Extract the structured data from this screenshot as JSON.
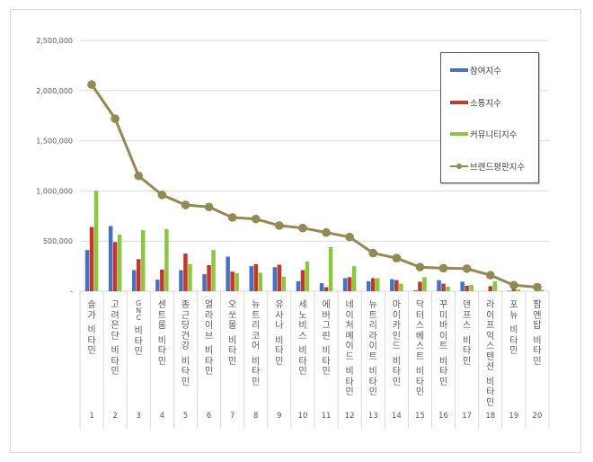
{
  "chart_data": {
    "type": "bar",
    "title": "",
    "xlabel": "",
    "ylabel": "",
    "ylim": [
      0,
      2500000
    ],
    "y_ticks": [
      "-",
      "500,000",
      "1,000,000",
      "1,500,000",
      "2,000,000",
      "2,500,000"
    ],
    "grid": true,
    "legend_position": "upper right (inside)",
    "categories": [
      "1",
      "2",
      "3",
      "4",
      "5",
      "6",
      "7",
      "8",
      "9",
      "10",
      "11",
      "12",
      "13",
      "14",
      "15",
      "16",
      "17",
      "18",
      "19",
      "20"
    ],
    "category_names": [
      "솔가 비타민",
      "고려은단 비타민",
      "GNC 비타민",
      "센트룸 비타민",
      "종근당건강 비타민",
      "얼라이브 비타민",
      "오쏘몰 비타민",
      "뉴트리코어 비타민",
      "유사나 비타민",
      "세노비스 비타민",
      "에버그린 비타민",
      "네이처메이드 비타민",
      "뉴트리라이트 비타민",
      "마이카인드 비타민",
      "닥터스베스트 비타민",
      "꾸미바이트 비타민",
      "덴프스 비타민",
      "라이프익스텐션 비타민",
      "포뉴 비타민",
      "팜엔탑 비타민"
    ],
    "series": [
      {
        "name": "참여지수",
        "type": "bar",
        "color": "#4472c4",
        "values": [
          410000,
          650000,
          210000,
          115000,
          210000,
          170000,
          345000,
          250000,
          240000,
          100000,
          80000,
          130000,
          100000,
          120000,
          10000,
          110000,
          95000,
          0,
          5000,
          0
        ]
      },
      {
        "name": "소통지수",
        "type": "bar",
        "color": "#c0392b",
        "values": [
          640000,
          490000,
          320000,
          215000,
          375000,
          260000,
          195000,
          270000,
          265000,
          210000,
          40000,
          140000,
          130000,
          110000,
          95000,
          75000,
          55000,
          50000,
          20000,
          0
        ]
      },
      {
        "name": "커뮤니티지수",
        "type": "bar",
        "color": "#8dc63f",
        "values": [
          1000000,
          565000,
          610000,
          620000,
          270000,
          410000,
          180000,
          185000,
          145000,
          295000,
          440000,
          250000,
          130000,
          75000,
          140000,
          45000,
          65000,
          100000,
          20000,
          15000
        ]
      },
      {
        "name": "브랜드평판지수",
        "type": "line",
        "color": "#938953",
        "values": [
          2060000,
          1720000,
          1150000,
          960000,
          860000,
          840000,
          735000,
          720000,
          655000,
          630000,
          585000,
          540000,
          380000,
          330000,
          240000,
          230000,
          225000,
          160000,
          60000,
          40000
        ]
      }
    ]
  },
  "legend": {
    "items": [
      "참여지수",
      "소통지수",
      "커뮤니티지수",
      "브랜드평판지수"
    ],
    "colors": [
      "#4472c4",
      "#c0392b",
      "#8dc63f",
      "#938953"
    ]
  },
  "x_axis": {
    "names": [
      "솔가 비타민",
      "고려은단 비타민",
      "GNC 비타민",
      "센트룸 비타민",
      "종근당건강 비타민",
      "얼라이브 비타민",
      "오쏘몰 비타민",
      "뉴트리코어 비타민",
      "유사나 비타민",
      "세노비스 비타민",
      "에버그린 비타민",
      "네이처메이드 비타민",
      "뉴트리라이트 비타민",
      "마이카인드 비타민",
      "닥터스베스트 비타민",
      "꾸미바이트 비타민",
      "덴프스 비타민",
      "라이프익스텐션 비타민",
      "포뉴 비타민",
      "팜엔탑 비타민"
    ],
    "ranks": [
      "1",
      "2",
      "3",
      "4",
      "5",
      "6",
      "7",
      "8",
      "9",
      "10",
      "11",
      "12",
      "13",
      "14",
      "15",
      "16",
      "17",
      "18",
      "19",
      "20"
    ]
  }
}
